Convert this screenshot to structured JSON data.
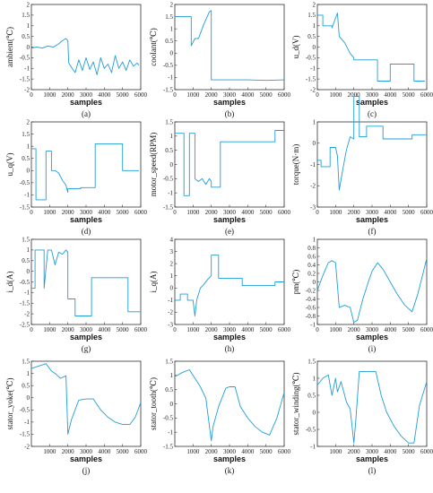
{
  "chart_data": [
    {
      "type": "line",
      "caption": "(a)",
      "ylabel": "ambient(℃)",
      "xlabel": "samples",
      "ylim": [
        -2,
        2
      ],
      "yticks": [
        -2,
        -1.5,
        -1,
        -0.5,
        0,
        0.5,
        1,
        1.5,
        2
      ],
      "xlim": [
        0,
        6000
      ],
      "xticks": [
        0,
        1000,
        2000,
        3000,
        4000,
        5000,
        6000
      ],
      "x": [
        0,
        300,
        600,
        900,
        1200,
        1500,
        1700,
        1900,
        2000,
        2050,
        2200,
        2400,
        2600,
        2800,
        3000,
        3200,
        3400,
        3600,
        3800,
        4000,
        4200,
        4400,
        4600,
        4800,
        5000,
        5200,
        5400,
        5600,
        5800,
        5900
      ],
      "values": [
        -0.05,
        0.0,
        -0.05,
        0.05,
        0.0,
        0.15,
        0.3,
        0.4,
        0.3,
        -0.75,
        -0.95,
        -1.2,
        -0.6,
        -1.1,
        -0.5,
        -1.05,
        -0.7,
        -1.3,
        -0.5,
        -1.0,
        -0.8,
        -1.2,
        -0.4,
        -1.0,
        -0.7,
        -1.1,
        -0.6,
        -0.9,
        -0.75,
        -0.85
      ]
    },
    {
      "type": "line",
      "caption": "(b)",
      "ylabel": "coolant(℃)",
      "xlabel": "samples",
      "ylim": [
        -1.5,
        2
      ],
      "yticks": [
        -1.5,
        -1,
        -0.5,
        0,
        0.5,
        1,
        1.5,
        2
      ],
      "xlim": [
        0,
        6000
      ],
      "xticks": [
        0,
        1000,
        2000,
        3000,
        4000,
        5000,
        6000
      ],
      "x": [
        0,
        900,
        900,
        1100,
        1100,
        1300,
        1600,
        1900,
        2000,
        2000,
        3000,
        4000,
        5000,
        6000
      ],
      "values": [
        1.5,
        1.5,
        0.3,
        0.6,
        0.6,
        0.6,
        1.2,
        1.7,
        1.75,
        -1.1,
        -1.1,
        -1.1,
        -1.12,
        -1.1
      ]
    },
    {
      "type": "line",
      "caption": "(c)",
      "ylabel": "u_d(V)",
      "xlabel": "samples",
      "ylim": [
        -2,
        2
      ],
      "yticks": [
        -2,
        -1.5,
        -1,
        -0.5,
        0,
        0.5,
        1,
        1.5,
        2
      ],
      "xlim": [
        0,
        6000
      ],
      "xticks": [
        0,
        1000,
        2000,
        3000,
        4000,
        5000,
        6000
      ],
      "x": [
        0,
        300,
        300,
        800,
        800,
        1100,
        1200,
        1500,
        1800,
        2000,
        2000,
        2400,
        2400,
        3300,
        3300,
        4000,
        4000,
        5300,
        5300,
        5900
      ],
      "values": [
        1.5,
        1.5,
        1.0,
        1.0,
        0.9,
        1.6,
        0.5,
        0.2,
        -0.3,
        -0.5,
        -0.6,
        -0.6,
        -0.6,
        -0.6,
        -1.6,
        -1.6,
        -0.8,
        -0.8,
        -1.6,
        -1.6
      ]
    },
    {
      "type": "line",
      "caption": "(d)",
      "ylabel": "u_q(V)",
      "xlabel": "samples",
      "ylim": [
        -1.5,
        2
      ],
      "yticks": [
        -1.5,
        -1,
        -0.5,
        0,
        0.5,
        1,
        1.5,
        2
      ],
      "xlim": [
        0,
        6000
      ],
      "xticks": [
        0,
        1000,
        2000,
        3000,
        4000,
        5000,
        6000
      ],
      "x": [
        0,
        250,
        250,
        800,
        800,
        1100,
        1100,
        1300,
        1500,
        1700,
        1900,
        2000,
        2000,
        2700,
        2700,
        3500,
        3500,
        5000,
        5000,
        5900
      ],
      "values": [
        0.9,
        0.9,
        -1.2,
        -1.2,
        0.8,
        0.8,
        0.0,
        0.0,
        -0.1,
        -0.4,
        -0.6,
        -0.9,
        -0.75,
        -0.75,
        -0.7,
        -0.7,
        1.1,
        1.1,
        0.0,
        0.0
      ]
    },
    {
      "type": "line",
      "caption": "(e)",
      "ylabel": "motor_speed(RPM)",
      "xlabel": "samples",
      "ylim": [
        -1.5,
        1.5
      ],
      "yticks": [
        -1.5,
        -1,
        -0.5,
        0,
        0.5,
        1,
        1.5
      ],
      "xlim": [
        0,
        6000
      ],
      "xticks": [
        0,
        1000,
        2000,
        3000,
        4000,
        5000,
        6000
      ],
      "x": [
        0,
        500,
        500,
        800,
        800,
        1100,
        1100,
        1300,
        1500,
        1700,
        1900,
        2000,
        2000,
        2500,
        2500,
        5500,
        5500,
        6000
      ],
      "values": [
        1.1,
        1.1,
        -1.1,
        -1.1,
        1.1,
        1.1,
        -0.5,
        -0.6,
        -0.5,
        -0.7,
        -0.5,
        -0.6,
        -0.8,
        -0.8,
        0.8,
        0.8,
        1.2,
        1.2
      ]
    },
    {
      "type": "line",
      "caption": "(f)",
      "ylabel": "torque(N·m)",
      "xlabel": "samples",
      "ylim": [
        -3,
        1
      ],
      "yticks": [
        -3,
        -2,
        -1,
        0,
        1
      ],
      "xlim": [
        0,
        6000
      ],
      "xticks": [
        0,
        1000,
        2000,
        3000,
        4000,
        5000,
        6000
      ],
      "x": [
        0,
        200,
        200,
        700,
        700,
        1000,
        1100,
        1200,
        1400,
        1600,
        1800,
        2000,
        2000,
        2300,
        2300,
        2700,
        2700,
        3600,
        3600,
        5200,
        5200,
        6000
      ],
      "values": [
        -0.8,
        -0.8,
        -1.1,
        -1.1,
        -0.2,
        -0.2,
        -0.6,
        -2.2,
        -1.2,
        -0.3,
        0.3,
        0.2,
        2.2,
        2.2,
        0.3,
        0.3,
        0.8,
        0.8,
        0.2,
        0.2,
        0.4,
        0.4
      ]
    },
    {
      "type": "line",
      "caption": "(g)",
      "ylabel": "i_d(A)",
      "xlabel": "samples",
      "ylim": [
        -2.5,
        1.5
      ],
      "yticks": [
        -2.5,
        -2,
        -1.5,
        -1,
        -0.5,
        0,
        0.5,
        1,
        1.5
      ],
      "xlim": [
        0,
        6000
      ],
      "xticks": [
        0,
        1000,
        2000,
        3000,
        4000,
        5000,
        6000
      ],
      "x": [
        0,
        200,
        200,
        700,
        700,
        900,
        1100,
        1300,
        1500,
        1700,
        1900,
        2000,
        2000,
        2400,
        2400,
        3300,
        3300,
        5300,
        5300,
        6000
      ],
      "values": [
        -0.8,
        -0.8,
        1.0,
        1.0,
        -0.8,
        1.0,
        1.0,
        0.3,
        0.9,
        0.8,
        1.0,
        0.9,
        -1.3,
        -1.3,
        -2.1,
        -2.1,
        -0.3,
        -0.3,
        -1.9,
        -1.9
      ]
    },
    {
      "type": "line",
      "caption": "(h)",
      "ylabel": "i_q(A)",
      "xlabel": "samples",
      "ylim": [
        -3,
        4
      ],
      "yticks": [
        -3,
        -2,
        -1,
        0,
        1,
        2,
        3,
        4
      ],
      "xlim": [
        0,
        6000
      ],
      "xticks": [
        0,
        1000,
        2000,
        3000,
        4000,
        5000,
        6000
      ],
      "x": [
        0,
        300,
        300,
        700,
        700,
        1000,
        1100,
        1200,
        1400,
        1600,
        1800,
        2000,
        2000,
        2400,
        2400,
        3700,
        3700,
        5500,
        5500,
        6000
      ],
      "values": [
        -1.0,
        -1.0,
        -0.5,
        -0.5,
        -1.0,
        -1.0,
        -2.3,
        -1.0,
        0.0,
        0.3,
        0.7,
        1.0,
        2.7,
        2.7,
        0.8,
        0.8,
        0.2,
        0.2,
        0.5,
        0.5
      ]
    },
    {
      "type": "line",
      "caption": "(i)",
      "ylabel": "pm(℃)",
      "xlabel": "samples",
      "ylim": [
        -1,
        1
      ],
      "yticks": [
        -1,
        -0.8,
        -0.6,
        -0.4,
        -0.2,
        0,
        0.2,
        0.4,
        0.6,
        0.8,
        1
      ],
      "xlim": [
        0,
        6000
      ],
      "xticks": [
        0,
        1000,
        2000,
        3000,
        4000,
        5000,
        6000
      ],
      "x": [
        0,
        300,
        600,
        800,
        1000,
        1200,
        1500,
        1800,
        2000,
        2200,
        2500,
        2800,
        3000,
        3300,
        3600,
        4000,
        4400,
        4800,
        5200,
        5500,
        5800,
        6000
      ],
      "values": [
        -0.2,
        0.15,
        0.45,
        0.5,
        0.45,
        -0.6,
        -0.55,
        -0.6,
        -0.95,
        -0.9,
        -0.4,
        0.0,
        0.25,
        0.45,
        0.3,
        0.0,
        -0.3,
        -0.55,
        -0.7,
        -0.3,
        0.2,
        0.55
      ]
    },
    {
      "type": "line",
      "caption": "(j)",
      "ylabel": "stator_yoke(℃)",
      "xlabel": "samples",
      "ylim": [
        -2,
        1.5
      ],
      "yticks": [
        -2,
        -1.5,
        -1,
        -0.5,
        0,
        0.5,
        1,
        1.5
      ],
      "xlim": [
        0,
        6000
      ],
      "xticks": [
        1000,
        2000,
        3000,
        4000,
        5000,
        6000
      ],
      "x": [
        0,
        400,
        800,
        1100,
        1300,
        1600,
        1900,
        2000,
        2200,
        2600,
        3000,
        3400,
        3800,
        4200,
        4600,
        5000,
        5400,
        5700,
        6000
      ],
      "values": [
        1.2,
        1.3,
        1.4,
        1.1,
        1.0,
        0.8,
        0.9,
        -1.5,
        -0.9,
        -0.1,
        -0.05,
        -0.05,
        -0.5,
        -0.8,
        -1.0,
        -1.1,
        -1.1,
        -0.8,
        -0.2
      ]
    },
    {
      "type": "line",
      "caption": "(k)",
      "ylabel": "stator_tooth(℃)",
      "xlabel": "samples",
      "ylim": [
        -1.5,
        1.5
      ],
      "yticks": [
        -1.5,
        -1,
        -0.5,
        0,
        0.5,
        1,
        1.5
      ],
      "xlim": [
        0,
        6000
      ],
      "xticks": [
        1000,
        2000,
        3000,
        4000,
        5000,
        6000
      ],
      "x": [
        0,
        400,
        800,
        1100,
        1400,
        1700,
        2000,
        2100,
        2400,
        2800,
        3000,
        3300,
        3600,
        4000,
        4400,
        4800,
        5200,
        5600,
        6000
      ],
      "values": [
        0.95,
        1.1,
        1.2,
        0.9,
        0.6,
        0.2,
        -1.3,
        -0.8,
        -0.1,
        0.55,
        0.6,
        0.6,
        -0.1,
        -0.5,
        -0.8,
        -1.0,
        -1.1,
        -0.5,
        0.4
      ]
    },
    {
      "type": "line",
      "caption": "(l)",
      "ylabel": "stator_winding(℃)",
      "xlabel": "samples",
      "ylim": [
        -1,
        1.5
      ],
      "yticks": [
        -1,
        -0.5,
        0,
        0.5,
        1,
        1.5
      ],
      "xlim": [
        0,
        6000
      ],
      "xticks": [
        1000,
        2000,
        3000,
        4000,
        5000,
        6000
      ],
      "x": [
        0,
        300,
        600,
        800,
        1000,
        1100,
        1300,
        1600,
        1800,
        2000,
        2100,
        2300,
        2700,
        3200,
        3500,
        3800,
        4200,
        4600,
        5000,
        5300,
        5600,
        6000
      ],
      "values": [
        0.8,
        1.0,
        1.1,
        0.5,
        1.0,
        0.6,
        0.9,
        0.3,
        0.1,
        -0.9,
        -0.3,
        1.2,
        1.2,
        1.2,
        0.5,
        0.0,
        -0.4,
        -0.7,
        -0.9,
        -0.9,
        0.2,
        0.9
      ]
    }
  ],
  "colors": {
    "series": "#1f9ed8",
    "axis": "#333333"
  }
}
